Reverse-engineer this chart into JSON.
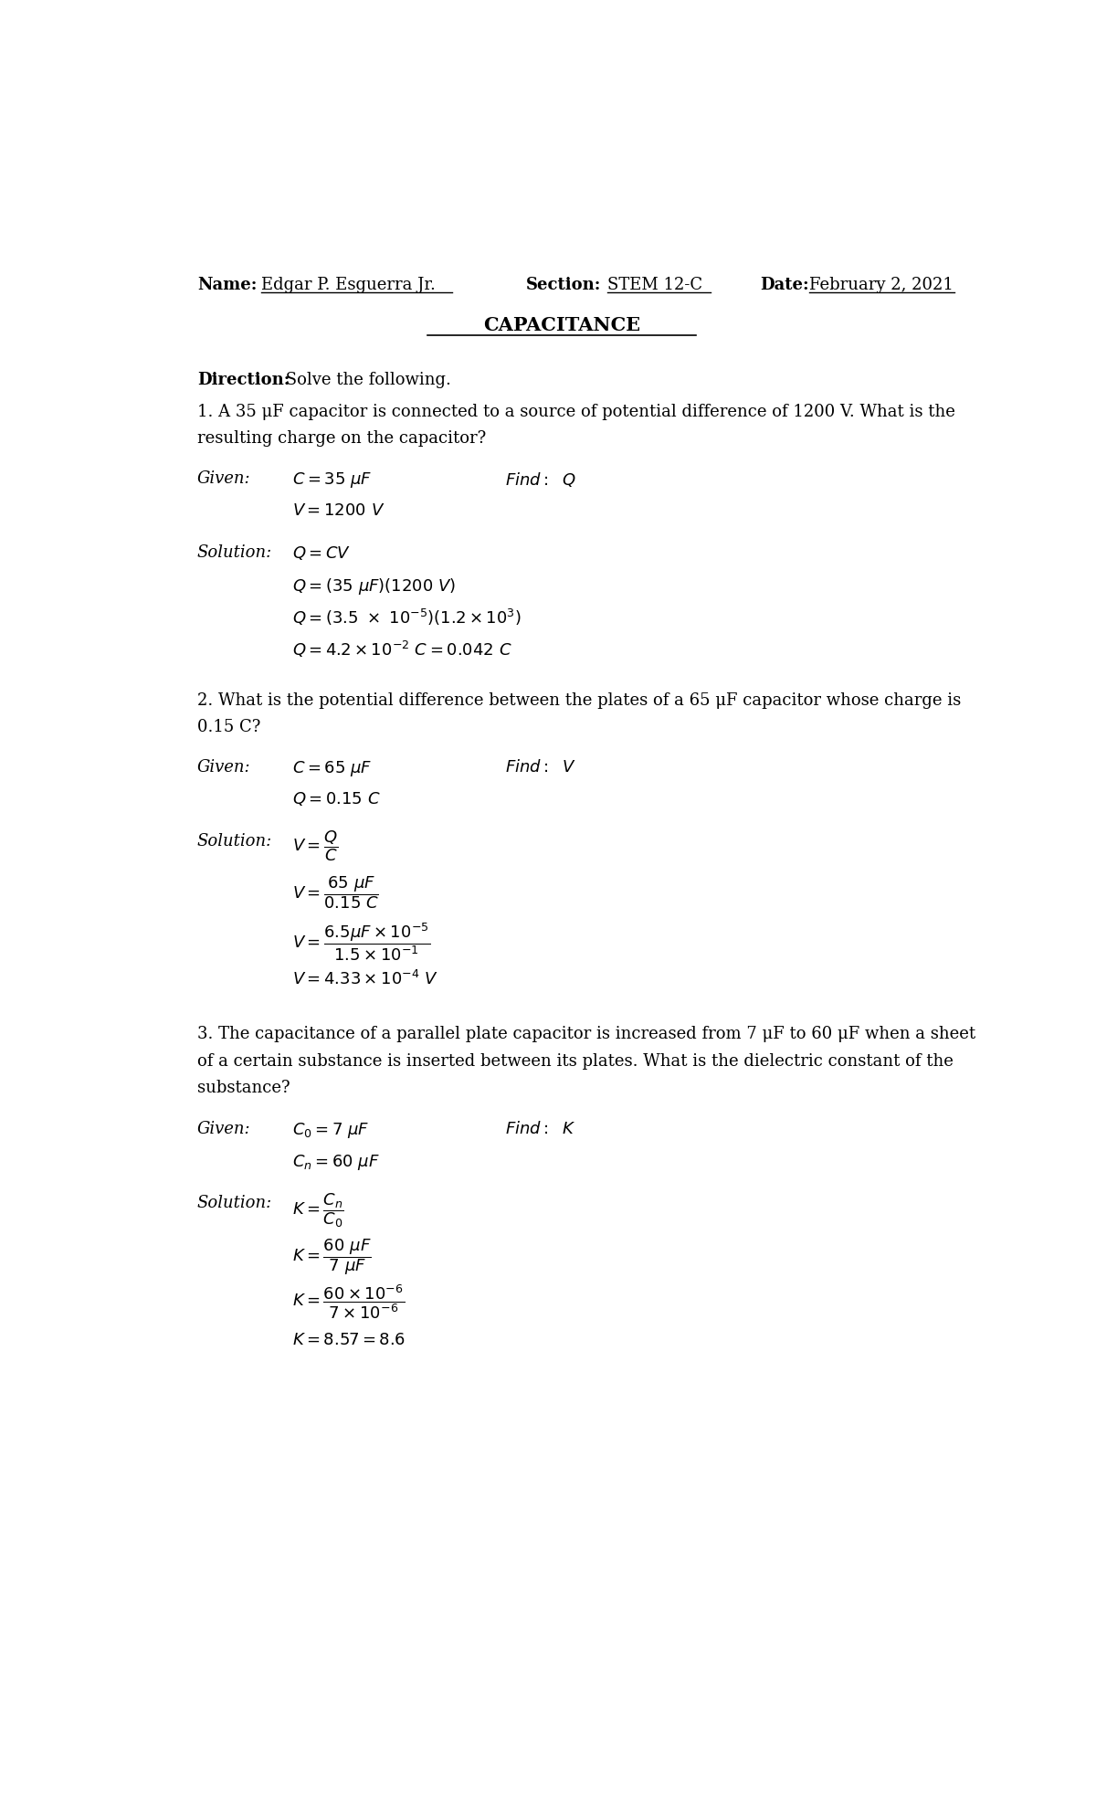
{
  "bg_color": "#ffffff",
  "header": {
    "name_label": "Name:",
    "name_value": "Edgar P. Esguerra Jr.",
    "section_label": "Section:",
    "section_value": "STEM 12-C",
    "date_label": "Date:",
    "date_value": "February 2, 2021"
  },
  "title": "CAPACITANCE",
  "direction_label": "Direction:",
  "direction_text": " Solve the following.",
  "q1_line1": "1. A 35 μF capacitor is connected to a source of potential difference of 1200 V. What is the",
  "q1_line2": "resulting charge on the capacitor?",
  "q2_line1": "2. What is the potential difference between the plates of a 65 μF capacitor whose charge is",
  "q2_line2": "0.15 C?",
  "q3_line1": "3. The capacitance of a parallel plate capacitor is increased from 7 μF to 60 μF when a sheet",
  "q3_line2": "of a certain substance is inserted between its plates. What is the dielectric constant of the",
  "q3_line3": "substance?"
}
